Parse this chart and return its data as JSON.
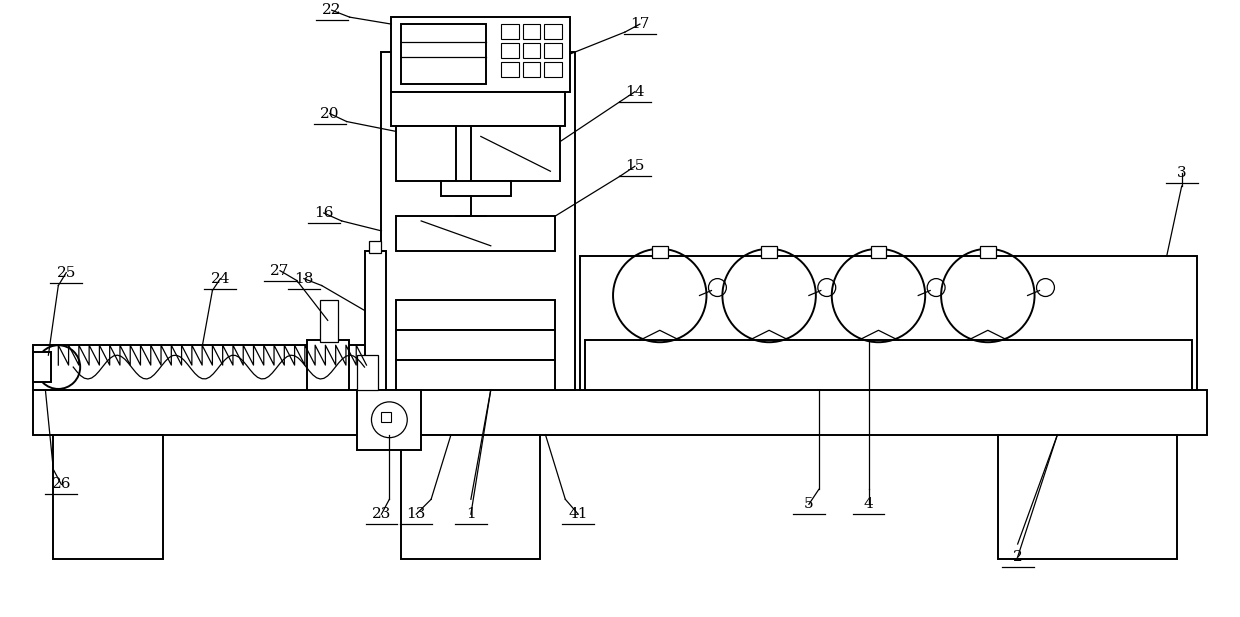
{
  "bg_color": "#ffffff",
  "line_color": "#000000",
  "lw": 1.4,
  "lw_thin": 0.9,
  "font_size": 11,
  "fig_width": 12.4,
  "fig_height": 6.17
}
